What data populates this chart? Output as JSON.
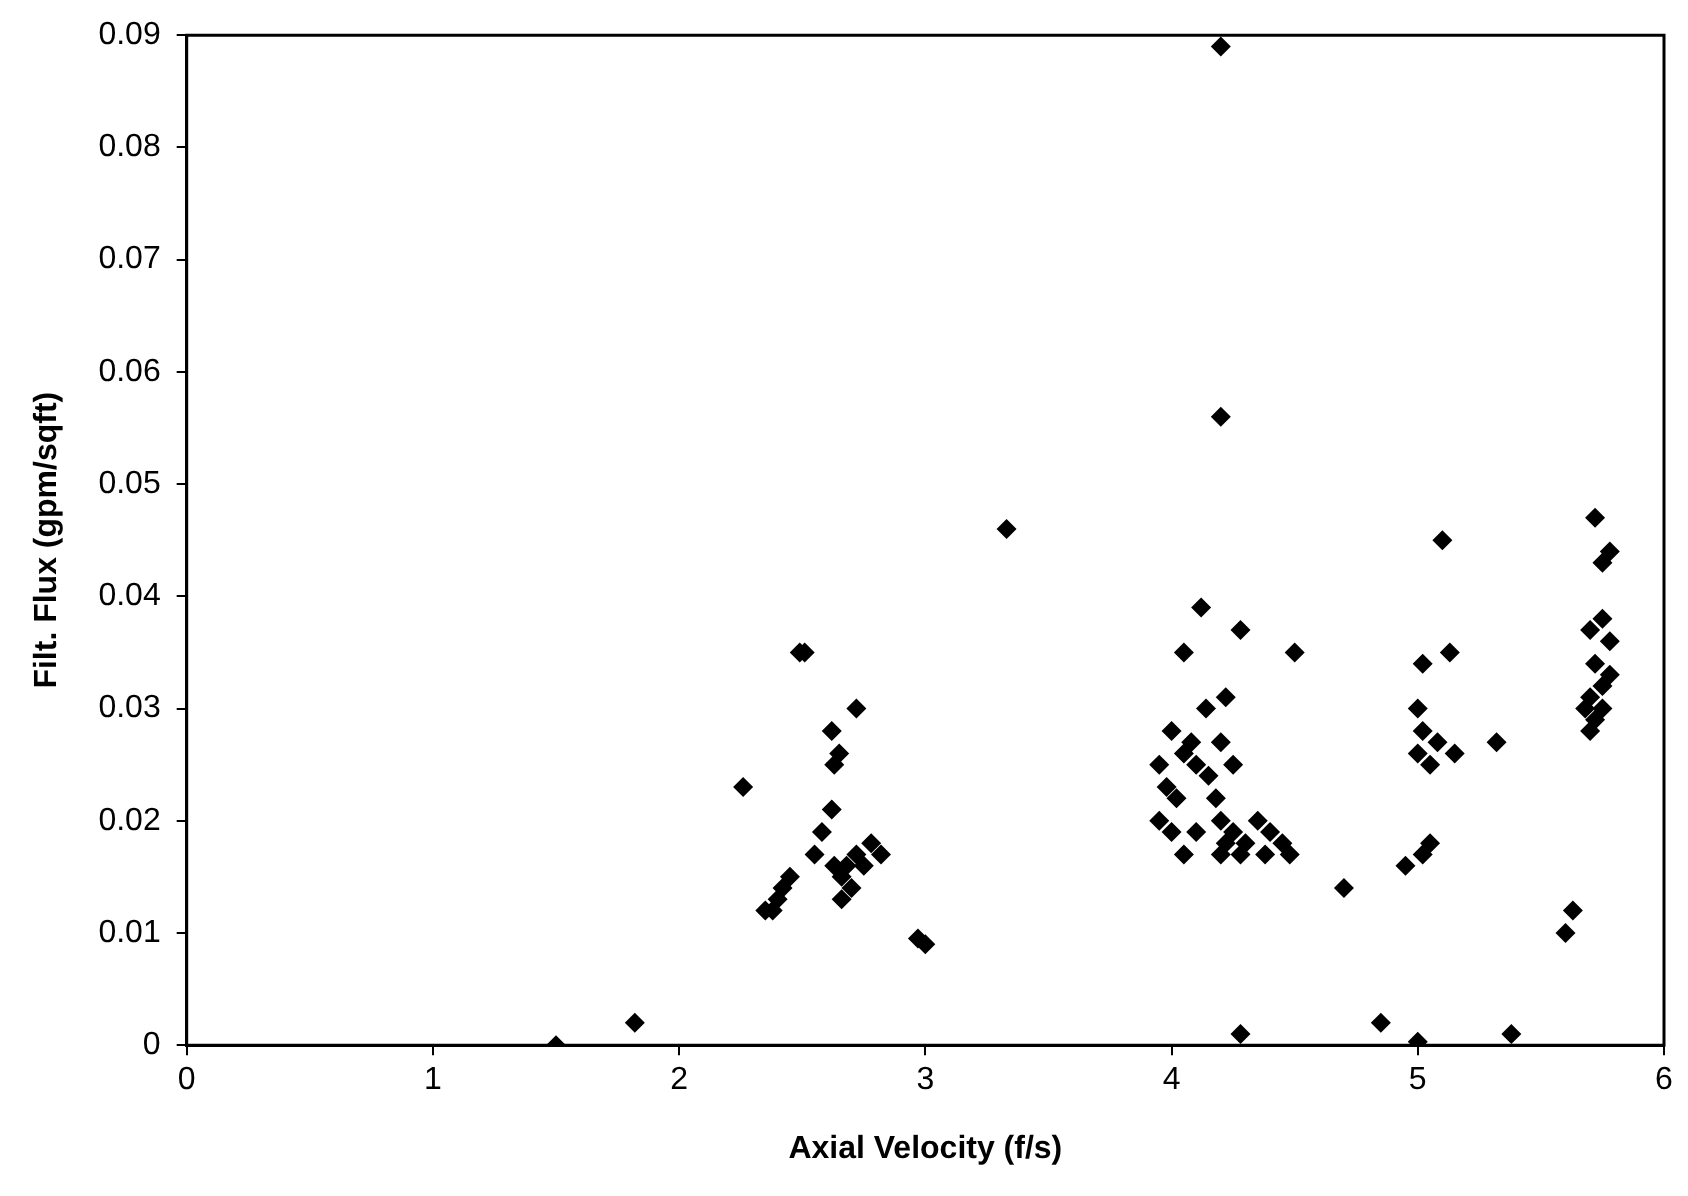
{
  "chart_data": {
    "type": "scatter",
    "xlabel": "Axial Velocity (f/s)",
    "ylabel": "Filt. Flux (gpm/sqft)",
    "xlim": [
      0,
      6
    ],
    "ylim": [
      0,
      0.09
    ],
    "xticks": [
      0,
      1,
      2,
      3,
      4,
      5,
      6
    ],
    "yticks": [
      0,
      0.01,
      0.02,
      0.03,
      0.04,
      0.05,
      0.06,
      0.07,
      0.08,
      0.09
    ],
    "grid": false,
    "legend": false,
    "marker": "diamond",
    "series": [
      {
        "color": "#000000",
        "x": [
          1.5,
          1.82,
          2.26,
          2.49,
          2.51,
          2.62,
          2.65,
          2.63,
          2.72,
          2.62,
          2.58,
          2.55,
          2.35,
          2.38,
          2.4,
          2.42,
          2.45,
          2.63,
          2.66,
          2.7,
          2.72,
          2.75,
          2.78,
          2.82,
          2.68,
          2.66,
          2.97,
          3.0,
          3.33,
          4.2,
          4.2,
          4.12,
          4.05,
          4.28,
          4.5,
          4.14,
          4.22,
          4.0,
          4.08,
          4.2,
          3.95,
          4.05,
          3.98,
          4.02,
          3.95,
          4.0,
          4.05,
          4.1,
          4.15,
          4.18,
          4.2,
          4.22,
          4.25,
          4.3,
          4.35,
          4.4,
          4.45,
          4.48,
          4.38,
          4.28,
          4.2,
          4.1,
          4.25,
          4.28,
          4.7,
          4.85,
          5.0,
          5.38,
          4.95,
          5.02,
          5.05,
          5.1,
          5.13,
          5.02,
          5.0,
          5.02,
          5.0,
          5.05,
          5.08,
          5.15,
          5.32,
          5.6,
          5.63,
          5.72,
          5.78,
          5.75,
          5.7,
          5.75,
          5.78,
          5.72,
          5.75,
          5.7,
          5.72,
          5.68,
          5.75,
          5.78,
          5.7
        ],
        "values": [
          0,
          0.002,
          0.023,
          0.035,
          0.035,
          0.028,
          0.026,
          0.025,
          0.03,
          0.021,
          0.019,
          0.017,
          0.012,
          0.012,
          0.013,
          0.014,
          0.015,
          0.016,
          0.015,
          0.014,
          0.017,
          0.016,
          0.018,
          0.017,
          0.016,
          0.013,
          0.0095,
          0.009,
          0.046,
          0.089,
          0.056,
          0.039,
          0.035,
          0.037,
          0.035,
          0.03,
          0.031,
          0.028,
          0.027,
          0.027,
          0.025,
          0.026,
          0.023,
          0.022,
          0.02,
          0.019,
          0.017,
          0.025,
          0.024,
          0.022,
          0.02,
          0.018,
          0.019,
          0.018,
          0.02,
          0.019,
          0.018,
          0.017,
          0.017,
          0.017,
          0.017,
          0.019,
          0.025,
          0.001,
          0.014,
          0.002,
          0.0003,
          0.001,
          0.016,
          0.017,
          0.018,
          0.045,
          0.035,
          0.034,
          0.03,
          0.028,
          0.026,
          0.025,
          0.027,
          0.026,
          0.027,
          0.01,
          0.012,
          0.047,
          0.044,
          0.043,
          0.037,
          0.038,
          0.036,
          0.034,
          0.032,
          0.031,
          0.029,
          0.03,
          0.03,
          0.033,
          0.028
        ]
      }
    ]
  }
}
